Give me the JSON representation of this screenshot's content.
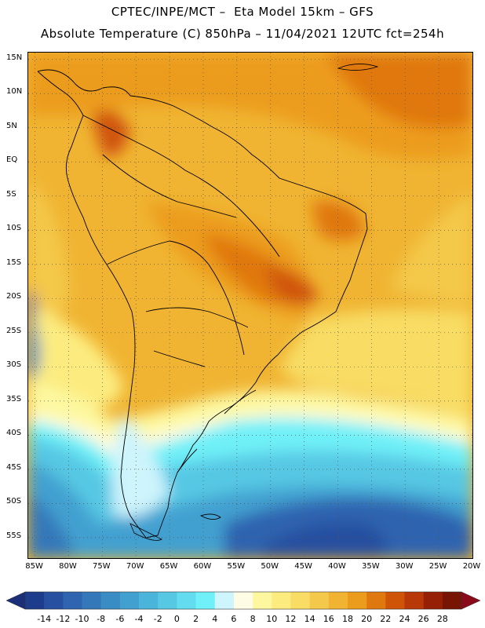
{
  "header": {
    "line1": "CPTEC/INPE/MCT –  Eta Model 15km – GFS",
    "line2": "Absolute Temperature (C) 850hPa – 11/04/2021 12UTC fct=254h"
  },
  "map": {
    "lat_range": [
      -58,
      16
    ],
    "lon_range": [
      -86,
      -20
    ],
    "lat_ticks": [
      "15N",
      "10N",
      "5N",
      "EQ",
      "5S",
      "10S",
      "15S",
      "20S",
      "25S",
      "30S",
      "35S",
      "40S",
      "45S",
      "50S",
      "55S"
    ],
    "lat_values": [
      15,
      10,
      5,
      0,
      -5,
      -10,
      -15,
      -20,
      -25,
      -30,
      -35,
      -40,
      -45,
      -50,
      -55
    ],
    "lon_ticks": [
      "85W",
      "80W",
      "75W",
      "70W",
      "65W",
      "60W",
      "55W",
      "50W",
      "45W",
      "40W",
      "35W",
      "30W",
      "25W",
      "20W"
    ],
    "lon_values": [
      -85,
      -80,
      -75,
      -70,
      -65,
      -60,
      -55,
      -50,
      -45,
      -40,
      -35,
      -30,
      -25,
      -20
    ],
    "gridlines": true
  },
  "colorbar": {
    "labels": [
      "-14",
      "-12",
      "-10",
      "-8",
      "-6",
      "-4",
      "-2",
      "0",
      "2",
      "4",
      "6",
      "8",
      "10",
      "12",
      "14",
      "16",
      "18",
      "20",
      "22",
      "24",
      "26",
      "28"
    ],
    "colors": [
      "#1e3c8c",
      "#2850a0",
      "#2e64b0",
      "#3478ba",
      "#3a8cc4",
      "#42a0d0",
      "#4ab4da",
      "#56c8e4",
      "#62dcee",
      "#70f0f8",
      "#cef4fc",
      "#fffce6",
      "#fdf8a0",
      "#fcec80",
      "#f8dc64",
      "#f4c84a",
      "#f0b432",
      "#ec9c1c",
      "#e07810",
      "#d05408",
      "#b83808",
      "#962006",
      "#781404"
    ],
    "under_color": "#1a2f78",
    "over_color": "#8a0a1a"
  }
}
